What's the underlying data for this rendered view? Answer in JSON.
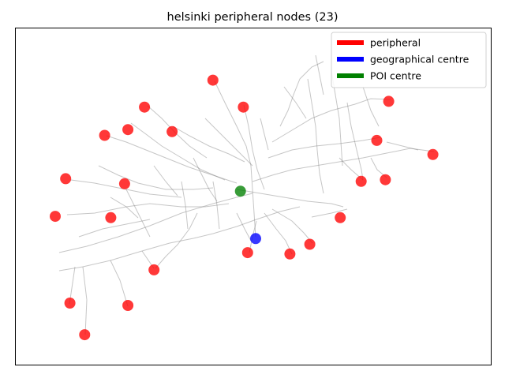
{
  "chart_data": {
    "type": "scatter",
    "title": "helsinki peripheral nodes (23)",
    "xlabel": "",
    "ylabel": "",
    "xlim": [
      0,
      1
    ],
    "ylim": [
      0,
      1
    ],
    "axes_ticks": false,
    "grid": false,
    "legend_position": "top-right",
    "legend": [
      {
        "label": "peripheral",
        "color": "#ff0000"
      },
      {
        "label": "geographical centre",
        "color": "#0000ff"
      },
      {
        "label": "POI centre",
        "color": "#008000"
      }
    ],
    "series": [
      {
        "name": "peripheral",
        "color": "#ff0000",
        "points": [
          [
            0.415,
            0.846
          ],
          [
            0.271,
            0.766
          ],
          [
            0.479,
            0.766
          ],
          [
            0.236,
            0.699
          ],
          [
            0.329,
            0.693
          ],
          [
            0.187,
            0.682
          ],
          [
            0.785,
            0.783
          ],
          [
            0.76,
            0.667
          ],
          [
            0.878,
            0.625
          ],
          [
            0.105,
            0.553
          ],
          [
            0.229,
            0.538
          ],
          [
            0.727,
            0.545
          ],
          [
            0.778,
            0.55
          ],
          [
            0.083,
            0.441
          ],
          [
            0.2,
            0.437
          ],
          [
            0.683,
            0.437
          ],
          [
            0.488,
            0.333
          ],
          [
            0.577,
            0.329
          ],
          [
            0.619,
            0.358
          ],
          [
            0.291,
            0.282
          ],
          [
            0.114,
            0.183
          ],
          [
            0.236,
            0.176
          ],
          [
            0.145,
            0.089
          ]
        ]
      },
      {
        "name": "geographical centre",
        "color": "#0000ff",
        "points": [
          [
            0.505,
            0.375
          ]
        ]
      },
      {
        "name": "POI centre",
        "color": "#008000",
        "points": [
          [
            0.473,
            0.516
          ]
        ]
      }
    ],
    "network_color": "#808080"
  }
}
